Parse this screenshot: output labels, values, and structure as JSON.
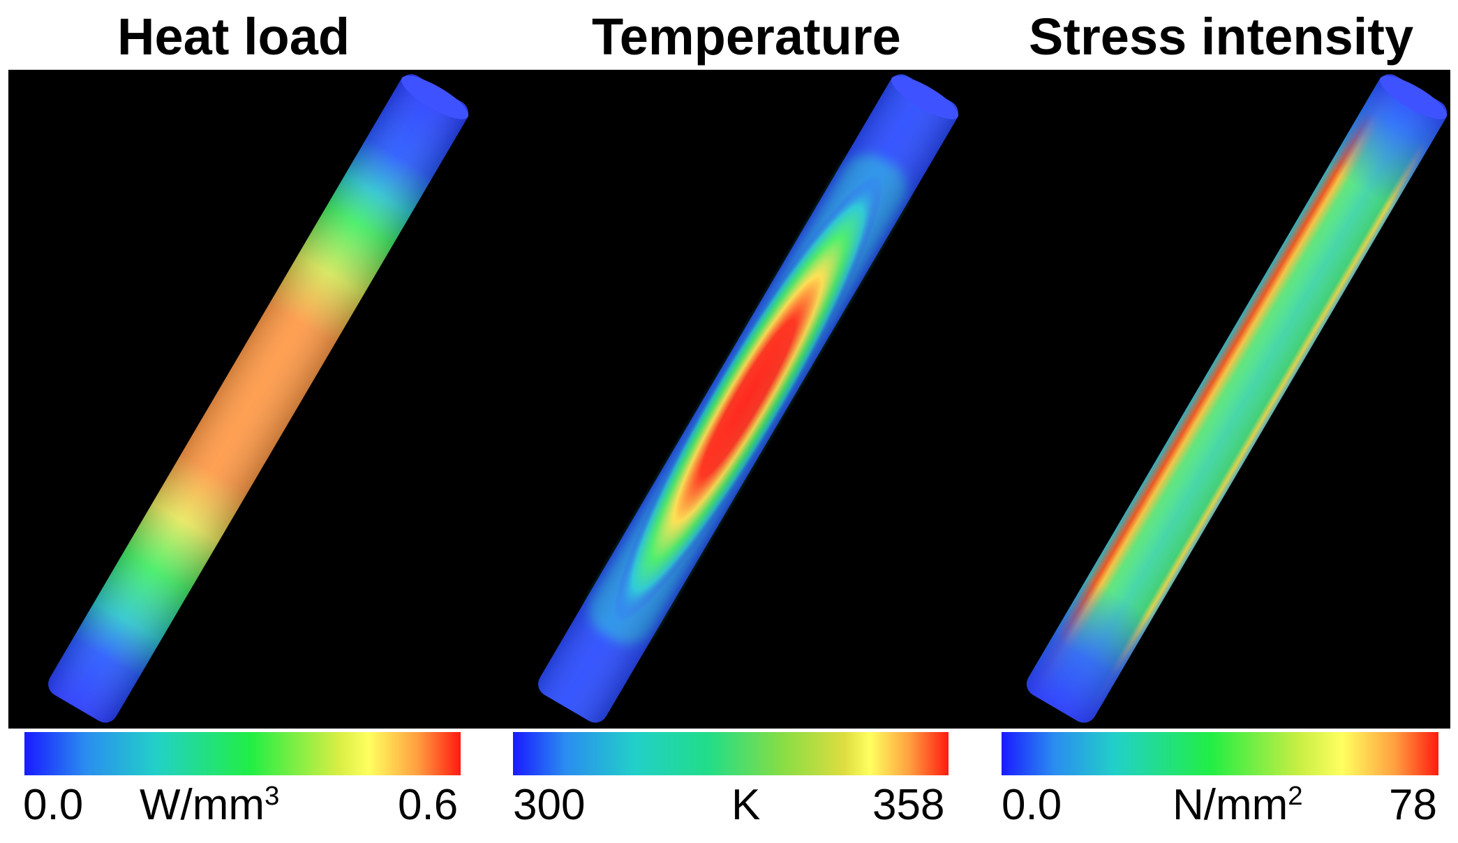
{
  "panels": [
    {
      "title": "Heat load",
      "min": "0.0",
      "max": "0.6",
      "unit_base": "W/mm",
      "unit_exp": "3"
    },
    {
      "title": "Temperature",
      "min": "300",
      "max": "358",
      "unit_base": "K",
      "unit_exp": ""
    },
    {
      "title": "Stress intensity",
      "min": "0.0",
      "max": "78",
      "unit_base": "N/mm",
      "unit_exp": "2"
    }
  ],
  "colors": {
    "background": "#000000",
    "blue": "#1a2cff",
    "cyan": "#22c8d8",
    "green": "#22ee44",
    "yellow": "#ffff55",
    "orange": "#ff9a3a",
    "red": "#ff1a10"
  }
}
